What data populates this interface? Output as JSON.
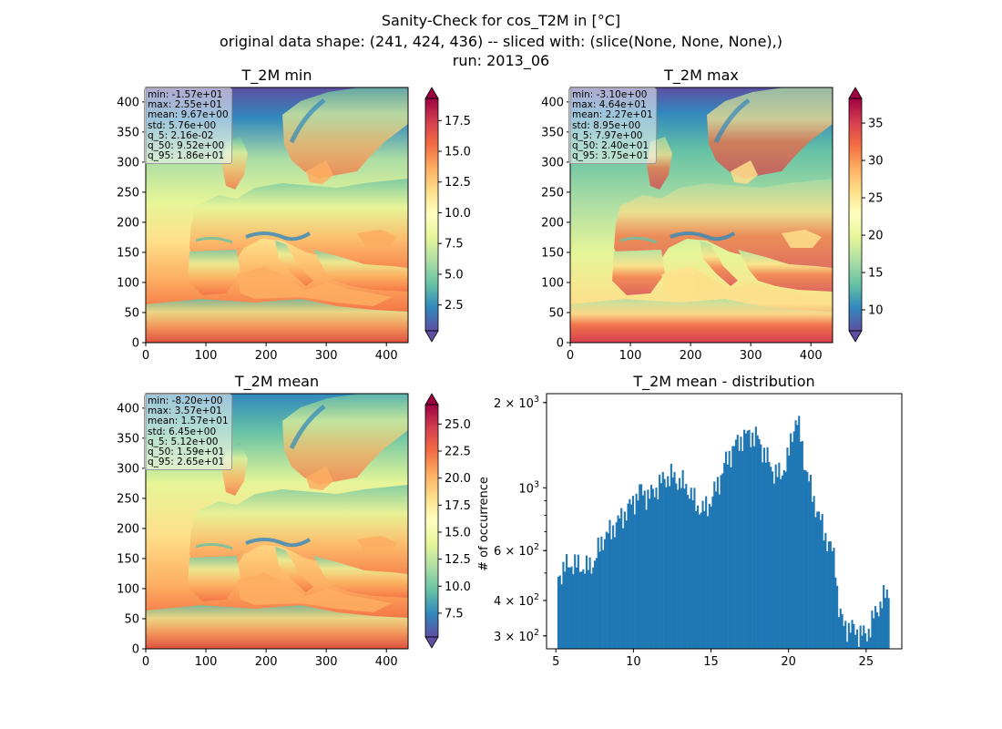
{
  "figure": {
    "title_lines": [
      "Sanity-Check for cos_T2M in [°C]",
      "original data shape: (241, 424, 436) -- sliced with: (slice(None, None, None),)",
      "run: 2013_06"
    ]
  },
  "chart_data": [
    {
      "type": "heatmap",
      "title": "T_2M min",
      "x_ticks": [
        0,
        100,
        200,
        300,
        400
      ],
      "y_ticks": [
        0,
        50,
        100,
        150,
        200,
        250,
        300,
        350,
        400
      ],
      "xlim": [
        0,
        436
      ],
      "ylim": [
        0,
        424
      ],
      "colorbar": {
        "cmap": "Spectral_r",
        "range": [
          0.4,
          19.3
        ],
        "ticks": [
          "2.5",
          "5.0",
          "7.5",
          "10.0",
          "12.5",
          "15.0",
          "17.5"
        ]
      },
      "stats": [
        "min: -1.57e+01",
        "max: 2.55e+01",
        "mean: 9.67e+00",
        "std: 5.76e+00",
        "q_5: 2.16e-02",
        "q_50: 9.52e+00",
        "q_95: 1.86e+01"
      ]
    },
    {
      "type": "heatmap",
      "title": "T_2M max",
      "x_ticks": [
        0,
        100,
        200,
        300,
        400
      ],
      "y_ticks": [
        0,
        50,
        100,
        150,
        200,
        250,
        300,
        350,
        400
      ],
      "xlim": [
        0,
        436
      ],
      "ylim": [
        0,
        424
      ],
      "colorbar": {
        "cmap": "Spectral_r",
        "range": [
          7.2,
          38.3
        ],
        "ticks": [
          "10",
          "15",
          "20",
          "25",
          "30",
          "35"
        ]
      },
      "stats": [
        "min: -3.10e+00",
        "max: 4.64e+01",
        "mean: 2.27e+01",
        "std: 8.95e+00",
        "q_5: 7.97e+00",
        "q_50: 2.40e+01",
        "q_95: 3.75e+01"
      ]
    },
    {
      "type": "heatmap",
      "title": "T_2M mean",
      "x_ticks": [
        0,
        100,
        200,
        300,
        400
      ],
      "y_ticks": [
        0,
        50,
        100,
        150,
        200,
        250,
        300,
        350,
        400
      ],
      "xlim": [
        0,
        436
      ],
      "ylim": [
        0,
        424
      ],
      "colorbar": {
        "cmap": "Spectral_r",
        "range": [
          5.3,
          26.8
        ],
        "ticks": [
          "7.5",
          "10.0",
          "12.5",
          "15.0",
          "17.5",
          "20.0",
          "22.5",
          "25.0"
        ]
      },
      "stats": [
        "min: -8.20e+00",
        "max: 3.57e+01",
        "mean: 1.57e+01",
        "std: 6.45e+00",
        "q_5: 5.12e+00",
        "q_50: 1.59e+01",
        "q_95: 2.65e+01"
      ]
    },
    {
      "type": "bar",
      "title": "T_2M mean - distribution",
      "ylabel": "# of occurrence",
      "yscale": "log",
      "xlim": [
        4.4,
        27.3
      ],
      "ylim": [
        270,
        2150
      ],
      "x_ticks": [
        "5",
        "10",
        "15",
        "20",
        "25"
      ],
      "y_ticks": [
        {
          "value": 300,
          "base": "3 × 10",
          "exp": "2"
        },
        {
          "value": 400,
          "base": "4 × 10",
          "exp": "2"
        },
        {
          "value": 600,
          "base": "6 × 10",
          "exp": "2"
        },
        {
          "value": 1000,
          "base": "10",
          "exp": "3"
        },
        {
          "value": 2000,
          "base": "2 × 10",
          "exp": "3"
        }
      ],
      "bin_range": [
        5.1,
        26.5
      ],
      "x": [
        5.1,
        5.5,
        6.0,
        6.5,
        7.0,
        7.5,
        8.0,
        8.5,
        9.0,
        9.5,
        10.0,
        10.5,
        11.0,
        11.5,
        12.0,
        12.5,
        13.0,
        13.5,
        14.0,
        14.5,
        15.0,
        15.5,
        16.0,
        16.5,
        17.0,
        17.5,
        18.0,
        18.5,
        19.0,
        19.5,
        20.0,
        20.5,
        21.0,
        21.5,
        22.0,
        22.5,
        23.0,
        23.2,
        23.5,
        24.0,
        24.5,
        25.0,
        25.5,
        26.0,
        26.5
      ],
      "values": [
        480,
        520,
        540,
        530,
        520,
        550,
        660,
        700,
        760,
        820,
        900,
        980,
        930,
        1000,
        1080,
        1100,
        1050,
        1000,
        880,
        830,
        900,
        1050,
        1250,
        1400,
        1500,
        1550,
        1500,
        1300,
        1150,
        1100,
        1300,
        1800,
        1250,
        950,
        780,
        650,
        560,
        380,
        330,
        320,
        310,
        300,
        350,
        400,
        430
      ]
    }
  ]
}
